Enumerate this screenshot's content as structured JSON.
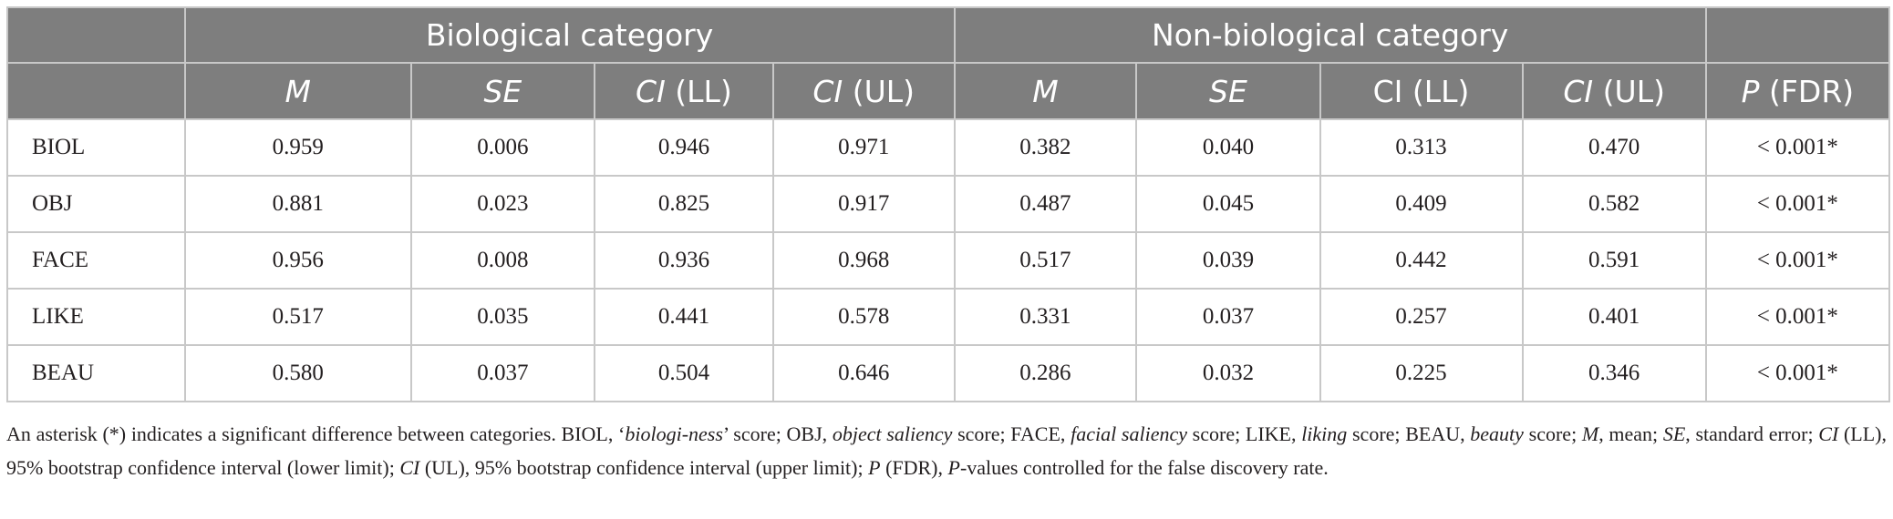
{
  "table": {
    "group_headers": {
      "biological": "Biological category",
      "non_biological": "Non-biological category"
    },
    "column_headers": [
      {
        "main": "M",
        "suffix": ""
      },
      {
        "main": "SE",
        "suffix": ""
      },
      {
        "main": "CI",
        "suffix": " (LL)"
      },
      {
        "main": "CI",
        "suffix": " (UL)"
      },
      {
        "main": "M",
        "suffix": ""
      },
      {
        "main": "SE",
        "suffix": ""
      },
      {
        "main": "CI (LL)",
        "suffix": ""
      },
      {
        "main": "CI",
        "suffix": " (UL)"
      },
      {
        "main": "P",
        "suffix": " (FDR)"
      }
    ],
    "rows": [
      {
        "label": "BIOL",
        "values": [
          "0.959",
          "0.006",
          "0.946",
          "0.971",
          "0.382",
          "0.040",
          "0.313",
          "0.470",
          "< 0.001*"
        ]
      },
      {
        "label": "OBJ",
        "values": [
          "0.881",
          "0.023",
          "0.825",
          "0.917",
          "0.487",
          "0.045",
          "0.409",
          "0.582",
          "< 0.001*"
        ]
      },
      {
        "label": "FACE",
        "values": [
          "0.956",
          "0.008",
          "0.936",
          "0.968",
          "0.517",
          "0.039",
          "0.442",
          "0.591",
          "< 0.001*"
        ]
      },
      {
        "label": "LIKE",
        "values": [
          "0.517",
          "0.035",
          "0.441",
          "0.578",
          "0.331",
          "0.037",
          "0.257",
          "0.401",
          "< 0.001*"
        ]
      },
      {
        "label": "BEAU",
        "values": [
          "0.580",
          "0.037",
          "0.504",
          "0.646",
          "0.286",
          "0.032",
          "0.225",
          "0.346",
          "< 0.001*"
        ]
      }
    ]
  },
  "footnote": {
    "s1": "An asterisk (*) indicates a significant difference between categories. BIOL, ‘",
    "s2": "biologi-ness",
    "s3": "’ score; OBJ, ",
    "s4": "object saliency",
    "s5": " score; FACE, ",
    "s6": "facial saliency",
    "s7": " score; LIKE, ",
    "s8": "liking",
    "s9": " score; BEAU, ",
    "s10": "beauty",
    "s11": " score; ",
    "s12": "M",
    "s13": ", mean; ",
    "s14": "SE",
    "s15": ", standard error; ",
    "s16": "CI",
    "s17": " (LL), 95% bootstrap confidence interval (lower limit); ",
    "s18": "CI",
    "s19": " (UL), 95% bootstrap confidence interval (upper limit); ",
    "s20": "P",
    "s21": " (FDR), ",
    "s22": "P",
    "s23": "-values controlled for the false discovery rate."
  }
}
